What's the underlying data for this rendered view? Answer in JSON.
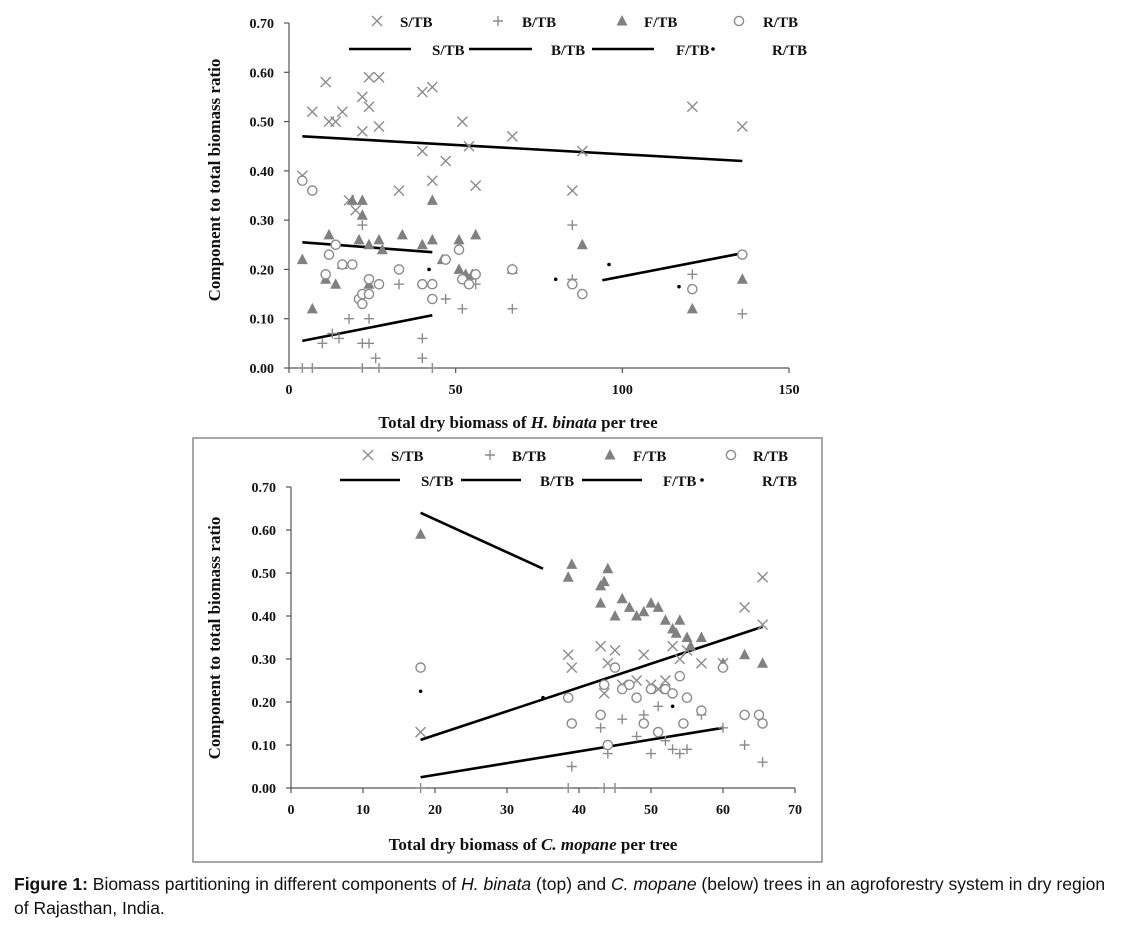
{
  "caption": {
    "label": "Figure 1:",
    "parts": [
      " Biomass partitioning in different components of ",
      "H. binata",
      " (top) and ",
      "C. mopane",
      " (below) trees in an agroforestry system in dry region of Rajasthan, India."
    ]
  },
  "chart_data": [
    {
      "type": "scatter",
      "title": "",
      "xlabel_prefix": "Total dry biomass of ",
      "xlabel_species": "H. binata",
      "xlabel_suffix": " per tree",
      "ylabel": "Component to total biomass ratio",
      "xlim": [
        0,
        150
      ],
      "ylim": [
        0,
        0.7
      ],
      "xticks": [
        "0",
        "50",
        "100",
        "150"
      ],
      "yticks": [
        "0.00",
        "0.10",
        "0.20",
        "0.30",
        "0.40",
        "0.50",
        "0.60",
        "0.70"
      ],
      "legend_markers": [
        "S/TB",
        "B/TB",
        "F/TB",
        "R/TB"
      ],
      "legend_lines": [
        "S/TB",
        "B/TB",
        "F/TB",
        "R/TB"
      ],
      "series": [
        {
          "name": "S/TB",
          "marker": "x",
          "color": "#8c8c8c",
          "points": [
            [
              4,
              0.39
            ],
            [
              7,
              0.52
            ],
            [
              11,
              0.58
            ],
            [
              12,
              0.5
            ],
            [
              14,
              0.5
            ],
            [
              16,
              0.52
            ],
            [
              18,
              0.34
            ],
            [
              20,
              0.32
            ],
            [
              22,
              0.55
            ],
            [
              22,
              0.48
            ],
            [
              24,
              0.59
            ],
            [
              24,
              0.53
            ],
            [
              27,
              0.59
            ],
            [
              27,
              0.49
            ],
            [
              33,
              0.36
            ],
            [
              40,
              0.56
            ],
            [
              40,
              0.44
            ],
            [
              43,
              0.57
            ],
            [
              43,
              0.38
            ],
            [
              47,
              0.42
            ],
            [
              52,
              0.5
            ],
            [
              54,
              0.45
            ],
            [
              56,
              0.37
            ],
            [
              67,
              0.47
            ],
            [
              85,
              0.36
            ],
            [
              88,
              0.44
            ],
            [
              121,
              0.53
            ],
            [
              136,
              0.49
            ]
          ]
        },
        {
          "name": "B/TB",
          "marker": "+",
          "color": "#8c8c8c",
          "points": [
            [
              4,
              0.0
            ],
            [
              7,
              0.0
            ],
            [
              10,
              0.05
            ],
            [
              13,
              0.07
            ],
            [
              15,
              0.06
            ],
            [
              18,
              0.1
            ],
            [
              22,
              0.05
            ],
            [
              22,
              0.0
            ],
            [
              22,
              0.29
            ],
            [
              24,
              0.1
            ],
            [
              24,
              0.05
            ],
            [
              26,
              0.02
            ],
            [
              27,
              0.0
            ],
            [
              33,
              0.17
            ],
            [
              40,
              0.02
            ],
            [
              40,
              0.06
            ],
            [
              43,
              0.0
            ],
            [
              43,
              0.14
            ],
            [
              47,
              0.14
            ],
            [
              52,
              0.12
            ],
            [
              54,
              0.18
            ],
            [
              56,
              0.17
            ],
            [
              67,
              0.12
            ],
            [
              85,
              0.29
            ],
            [
              85,
              0.18
            ],
            [
              88,
              0.15
            ],
            [
              121,
              0.19
            ],
            [
              136,
              0.11
            ]
          ]
        },
        {
          "name": "F/TB",
          "marker": "triangle",
          "color": "#808080",
          "points": [
            [
              4,
              0.22
            ],
            [
              7,
              0.12
            ],
            [
              11,
              0.18
            ],
            [
              12,
              0.27
            ],
            [
              14,
              0.17
            ],
            [
              16,
              0.21
            ],
            [
              19,
              0.34
            ],
            [
              21,
              0.26
            ],
            [
              22,
              0.34
            ],
            [
              22,
              0.31
            ],
            [
              24,
              0.25
            ],
            [
              24,
              0.17
            ],
            [
              27,
              0.26
            ],
            [
              28,
              0.24
            ],
            [
              34,
              0.27
            ],
            [
              40,
              0.25
            ],
            [
              43,
              0.34
            ],
            [
              43,
              0.26
            ],
            [
              46,
              0.22
            ],
            [
              51,
              0.26
            ],
            [
              51,
              0.2
            ],
            [
              53,
              0.19
            ],
            [
              55,
              0.19
            ],
            [
              56,
              0.27
            ],
            [
              67,
              0.2
            ],
            [
              88,
              0.25
            ],
            [
              121,
              0.12
            ],
            [
              136,
              0.18
            ]
          ]
        },
        {
          "name": "R/TB",
          "marker": "circle",
          "color": "#8c8c8c",
          "points": [
            [
              4,
              0.38
            ],
            [
              7,
              0.36
            ],
            [
              11,
              0.19
            ],
            [
              12,
              0.23
            ],
            [
              14,
              0.25
            ],
            [
              16,
              0.21
            ],
            [
              19,
              0.21
            ],
            [
              21,
              0.14
            ],
            [
              22,
              0.13
            ],
            [
              22,
              0.15
            ],
            [
              24,
              0.15
            ],
            [
              24,
              0.18
            ],
            [
              27,
              0.17
            ],
            [
              33,
              0.2
            ],
            [
              40,
              0.17
            ],
            [
              43,
              0.14
            ],
            [
              43,
              0.17
            ],
            [
              47,
              0.22
            ],
            [
              51,
              0.24
            ],
            [
              52,
              0.18
            ],
            [
              54,
              0.17
            ],
            [
              56,
              0.19
            ],
            [
              67,
              0.2
            ],
            [
              85,
              0.17
            ],
            [
              88,
              0.15
            ],
            [
              121,
              0.16
            ],
            [
              136,
              0.23
            ]
          ]
        }
      ],
      "trend_lines": [
        {
          "name": "S/TB",
          "from": [
            4,
            0.47
          ],
          "to": [
            136,
            0.42
          ]
        },
        {
          "name": "B/TB",
          "from": [
            4,
            0.055
          ],
          "to": [
            43,
            0.107
          ]
        },
        {
          "name": "F/TB",
          "from": [
            4,
            0.255
          ],
          "to": [
            43,
            0.235
          ]
        },
        {
          "name": "F/TB",
          "from": [
            94,
            0.178
          ],
          "to": [
            136,
            0.233
          ]
        }
      ],
      "trend_dots": [
        [
          4,
          0.22
        ],
        [
          42,
          0.2
        ],
        [
          80,
          0.18
        ],
        [
          96,
          0.21
        ],
        [
          117,
          0.165
        ]
      ]
    },
    {
      "type": "scatter",
      "title": "",
      "xlabel_prefix": "Total dry biomass of ",
      "xlabel_species": "C. mopane",
      "xlabel_suffix": " per tree",
      "ylabel": "Component to total biomass ratio",
      "xlim": [
        0,
        70
      ],
      "ylim": [
        0,
        0.7
      ],
      "xticks": [
        "0",
        "10",
        "20",
        "30",
        "40",
        "50",
        "60",
        "70"
      ],
      "yticks": [
        "0.00",
        "0.10",
        "0.20",
        "0.30",
        "0.40",
        "0.50",
        "0.60",
        "0.70"
      ],
      "legend_markers": [
        "S/TB",
        "B/TB",
        "F/TB",
        "R/TB"
      ],
      "legend_lines": [
        "S/TB",
        "B/TB",
        "F/TB",
        "R/TB"
      ],
      "series": [
        {
          "name": "S/TB",
          "marker": "x",
          "color": "#8c8c8c",
          "points": [
            [
              18,
              0.13
            ],
            [
              38.5,
              0.31
            ],
            [
              39,
              0.28
            ],
            [
              43,
              0.33
            ],
            [
              43.5,
              0.22
            ],
            [
              44,
              0.29
            ],
            [
              45,
              0.32
            ],
            [
              46,
              0.24
            ],
            [
              48,
              0.25
            ],
            [
              49,
              0.31
            ],
            [
              50,
              0.24
            ],
            [
              51,
              0.23
            ],
            [
              52,
              0.25
            ],
            [
              53,
              0.33
            ],
            [
              54,
              0.3
            ],
            [
              55,
              0.32
            ],
            [
              57,
              0.29
            ],
            [
              60,
              0.29
            ],
            [
              63,
              0.42
            ],
            [
              65.5,
              0.49
            ],
            [
              65.5,
              0.38
            ]
          ]
        },
        {
          "name": "B/TB",
          "marker": "+",
          "color": "#8c8c8c",
          "points": [
            [
              18,
              0.0
            ],
            [
              38.5,
              0.0
            ],
            [
              39,
              0.05
            ],
            [
              43,
              0.14
            ],
            [
              43.5,
              0.0
            ],
            [
              44,
              0.08
            ],
            [
              45,
              0.0
            ],
            [
              46,
              0.16
            ],
            [
              48,
              0.12
            ],
            [
              49,
              0.17
            ],
            [
              50,
              0.08
            ],
            [
              51,
              0.19
            ],
            [
              52,
              0.11
            ],
            [
              53,
              0.09
            ],
            [
              54,
              0.08
            ],
            [
              55,
              0.09
            ],
            [
              57,
              0.17
            ],
            [
              60,
              0.14
            ],
            [
              63,
              0.1
            ],
            [
              65.5,
              0.06
            ]
          ]
        },
        {
          "name": "F/TB",
          "marker": "triangle",
          "color": "#808080",
          "points": [
            [
              18,
              0.59
            ],
            [
              38.5,
              0.49
            ],
            [
              39,
              0.52
            ],
            [
              43,
              0.43
            ],
            [
              43,
              0.47
            ],
            [
              43.5,
              0.48
            ],
            [
              44,
              0.51
            ],
            [
              45,
              0.4
            ],
            [
              46,
              0.44
            ],
            [
              47,
              0.42
            ],
            [
              48,
              0.4
            ],
            [
              49,
              0.41
            ],
            [
              50,
              0.43
            ],
            [
              51,
              0.42
            ],
            [
              52,
              0.39
            ],
            [
              53,
              0.37
            ],
            [
              53.5,
              0.36
            ],
            [
              54,
              0.39
            ],
            [
              55,
              0.35
            ],
            [
              55.5,
              0.33
            ],
            [
              57,
              0.35
            ],
            [
              60,
              0.29
            ],
            [
              63,
              0.31
            ],
            [
              65.5,
              0.29
            ]
          ]
        },
        {
          "name": "R/TB",
          "marker": "circle",
          "color": "#8c8c8c",
          "points": [
            [
              18,
              0.28
            ],
            [
              38.5,
              0.21
            ],
            [
              39,
              0.15
            ],
            [
              43,
              0.17
            ],
            [
              43.5,
              0.24
            ],
            [
              44,
              0.1
            ],
            [
              45,
              0.28
            ],
            [
              46,
              0.23
            ],
            [
              47,
              0.24
            ],
            [
              48,
              0.21
            ],
            [
              49,
              0.15
            ],
            [
              50,
              0.23
            ],
            [
              51,
              0.13
            ],
            [
              52,
              0.23
            ],
            [
              53,
              0.22
            ],
            [
              54,
              0.26
            ],
            [
              54.5,
              0.15
            ],
            [
              55,
              0.21
            ],
            [
              57,
              0.18
            ],
            [
              60,
              0.28
            ],
            [
              63,
              0.17
            ],
            [
              65,
              0.17
            ],
            [
              65.5,
              0.15
            ]
          ]
        }
      ],
      "trend_lines": [
        {
          "name": "S/TB",
          "from": [
            18,
            0.112
          ],
          "to": [
            65.5,
            0.375
          ]
        },
        {
          "name": "B/TB",
          "from": [
            18,
            0.025
          ],
          "to": [
            60,
            0.14
          ]
        },
        {
          "name": "F/TB",
          "from": [
            18,
            0.64
          ],
          "to": [
            35,
            0.51
          ]
        }
      ],
      "trend_dots": [
        [
          18,
          0.225
        ],
        [
          35,
          0.21
        ],
        [
          53,
          0.19
        ]
      ]
    }
  ]
}
